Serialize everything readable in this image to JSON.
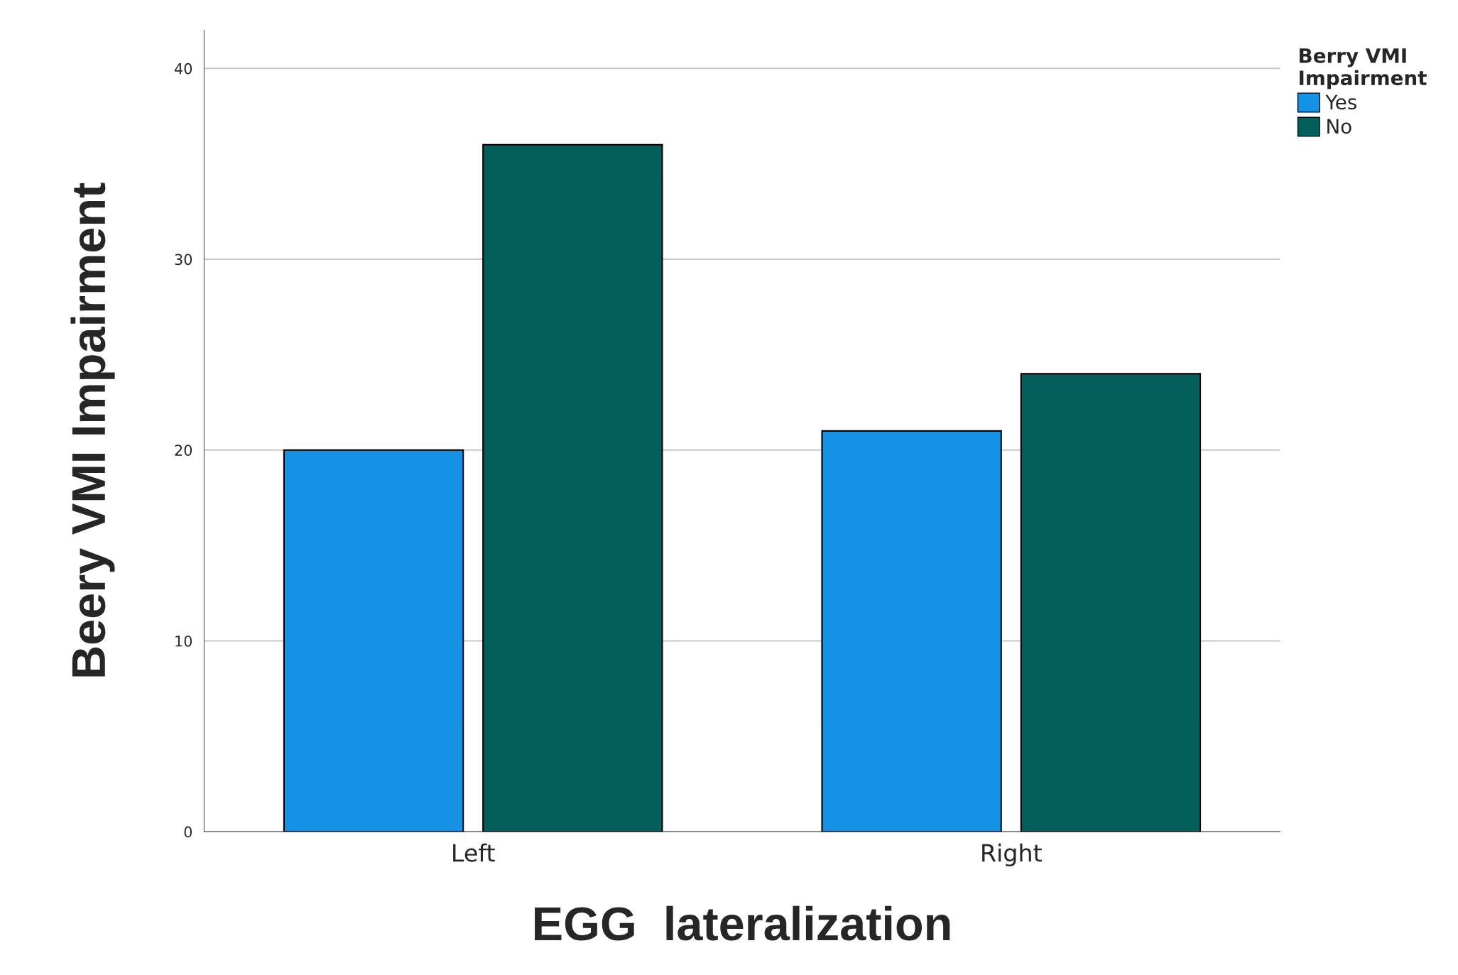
{
  "chart_data": {
    "type": "bar",
    "xlabel": "EGG  lateralization",
    "ylabel": "Beery VMI Impairment",
    "legend_title": "Berry VMI\nImpairment",
    "categories": [
      "Left",
      "Right"
    ],
    "series": [
      {
        "name": "Yes",
        "color": "#1591e6",
        "values": [
          20,
          21
        ]
      },
      {
        "name": "No",
        "color": "#035f5c",
        "values": [
          36,
          24
        ]
      }
    ],
    "ylim": [
      0,
      42
    ],
    "yticks": [
      0,
      10,
      20,
      30,
      40
    ],
    "grid": "y",
    "legend": "top right"
  }
}
